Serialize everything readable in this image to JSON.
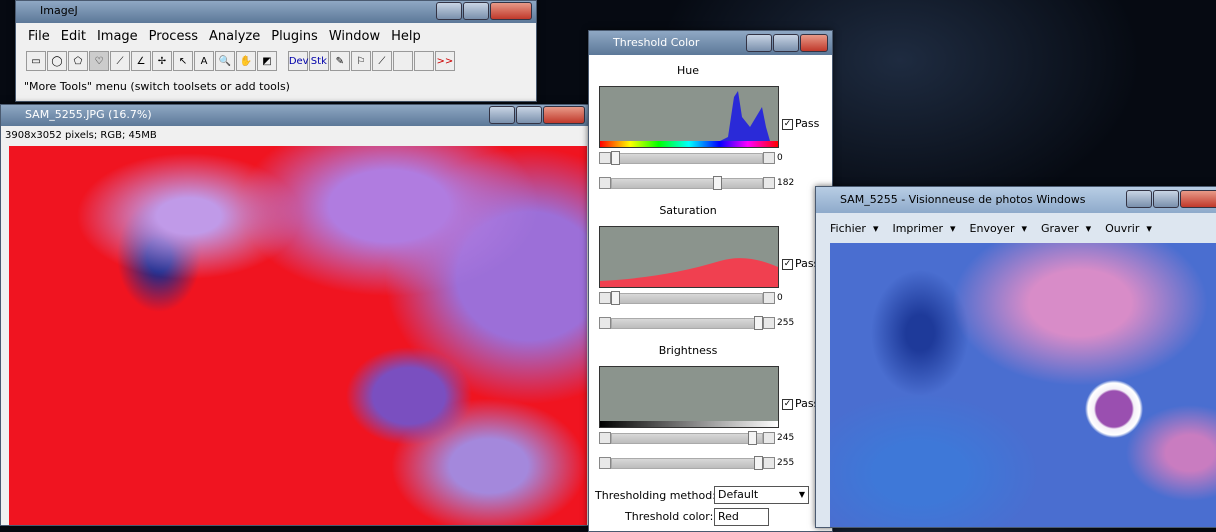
{
  "imagej": {
    "title": "ImageJ",
    "menu": [
      "File",
      "Edit",
      "Image",
      "Process",
      "Analyze",
      "Plugins",
      "Window",
      "Help"
    ],
    "tools": {
      "dev": "Dev",
      "stk": "Stk",
      "text": "A",
      "more": ">>"
    },
    "status": "\"More Tools\" menu (switch toolsets or add tools)"
  },
  "image_window": {
    "title": "SAM_5255.JPG (16.7%)",
    "info": "3908x3052 pixels; RGB; 45MB"
  },
  "threshold": {
    "title": "Threshold Color",
    "sections": [
      {
        "label": "Hue",
        "pass": "Pass",
        "min": 0,
        "max": 182
      },
      {
        "label": "Saturation",
        "pass": "Pass",
        "min": 0,
        "max": 255
      },
      {
        "label": "Brightness",
        "pass": "Pass",
        "min": 245,
        "max": 255
      }
    ],
    "method_label": "Thresholding method:",
    "method": "Default",
    "color_label": "Threshold color:",
    "color": "Red"
  },
  "viewer": {
    "title": "SAM_5255 - Visionneuse de photos Windows",
    "menu": [
      "Fichier",
      "Imprimer",
      "Envoyer",
      "Graver",
      "Ouvrir"
    ]
  }
}
